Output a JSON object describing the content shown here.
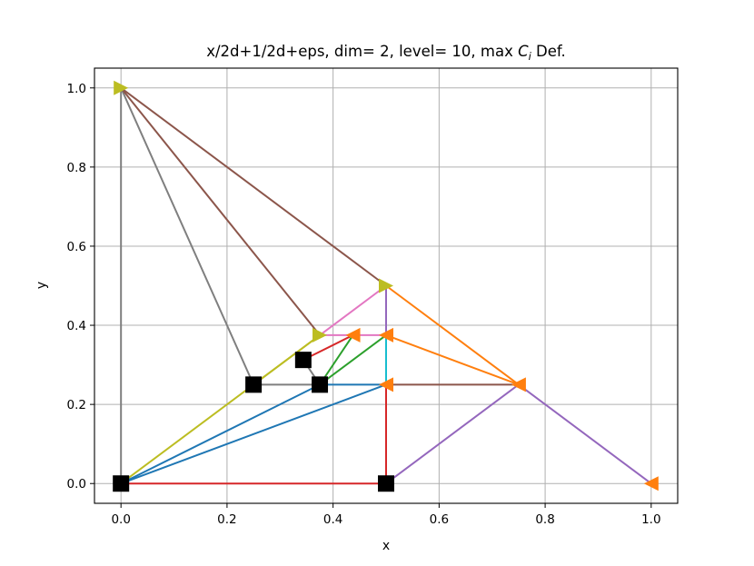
{
  "chart_data": {
    "type": "line",
    "title": "x/2d+1/2d+eps, dim= 2, level= 10, max ",
    "title_italic": "C",
    "title_sub": "i",
    "title_suffix": " Def.",
    "xlabel": "x",
    "ylabel": "y",
    "xlim": [
      -0.05,
      1.05
    ],
    "ylim": [
      -0.05,
      1.05
    ],
    "xticks": [
      0.0,
      0.2,
      0.4,
      0.6,
      0.8,
      1.0
    ],
    "yticks": [
      0.0,
      0.2,
      0.4,
      0.6,
      0.8,
      1.0
    ],
    "xtick_labels": [
      "0.0",
      "0.2",
      "0.4",
      "0.6",
      "0.8",
      "1.0"
    ],
    "ytick_labels": [
      "0.0",
      "0.2",
      "0.4",
      "0.6",
      "0.8",
      "1.0"
    ],
    "grid": true,
    "segments": [
      {
        "color": "#d62728",
        "x": [
          0,
          0.5
        ],
        "y": [
          0,
          0
        ]
      },
      {
        "color": "#d62728",
        "x": [
          0.5,
          0.5
        ],
        "y": [
          0,
          0.25
        ]
      },
      {
        "color": "#1f77b4",
        "x": [
          0,
          0.5
        ],
        "y": [
          0,
          0.25
        ]
      },
      {
        "color": "#1f77b4",
        "x": [
          0,
          0.375
        ],
        "y": [
          0,
          0.25
        ]
      },
      {
        "color": "#1f77b4",
        "x": [
          0.375,
          0.5
        ],
        "y": [
          0.25,
          0.25
        ]
      },
      {
        "color": "#bcbd22",
        "x": [
          0,
          0.375
        ],
        "y": [
          0,
          0.375
        ]
      },
      {
        "color": "#7f7f7f",
        "x": [
          0,
          0
        ],
        "y": [
          0,
          1
        ]
      },
      {
        "color": "#7f7f7f",
        "x": [
          0,
          0.25
        ],
        "y": [
          1,
          0.25
        ]
      },
      {
        "color": "#7f7f7f",
        "x": [
          0.25,
          0.375
        ],
        "y": [
          0.25,
          0.25
        ]
      },
      {
        "color": "#7f7f7f",
        "x": [
          0.3438,
          0.375
        ],
        "y": [
          0.3125,
          0.25
        ]
      },
      {
        "color": "#8c564b",
        "x": [
          0,
          0.5
        ],
        "y": [
          1,
          0.5
        ]
      },
      {
        "color": "#8c564b",
        "x": [
          0,
          0.375
        ],
        "y": [
          1,
          0.375
        ]
      },
      {
        "color": "#8c564b",
        "x": [
          0.5,
          0.75
        ],
        "y": [
          0.25,
          0.25
        ]
      },
      {
        "color": "#9467bd",
        "x": [
          0.5,
          0.5
        ],
        "y": [
          0.5,
          0.25
        ]
      },
      {
        "color": "#9467bd",
        "x": [
          0.5,
          0.75
        ],
        "y": [
          0,
          0.25
        ]
      },
      {
        "color": "#9467bd",
        "x": [
          0.75,
          1.0
        ],
        "y": [
          0.25,
          0
        ]
      },
      {
        "color": "#ff7f0e",
        "x": [
          0.5,
          0.75
        ],
        "y": [
          0.5,
          0.25
        ]
      },
      {
        "color": "#ff7f0e",
        "x": [
          0.5,
          0.75
        ],
        "y": [
          0.375,
          0.25
        ]
      },
      {
        "color": "#e377c2",
        "x": [
          0.375,
          0.5
        ],
        "y": [
          0.375,
          0.5
        ]
      },
      {
        "color": "#e377c2",
        "x": [
          0.375,
          0.5
        ],
        "y": [
          0.375,
          0.375
        ]
      },
      {
        "color": "#d62728",
        "x": [
          0.3438,
          0.4375
        ],
        "y": [
          0.3125,
          0.375
        ]
      },
      {
        "color": "#2ca02c",
        "x": [
          0.375,
          0.4375
        ],
        "y": [
          0.25,
          0.375
        ]
      },
      {
        "color": "#2ca02c",
        "x": [
          0.375,
          0.5
        ],
        "y": [
          0.25,
          0.375
        ]
      },
      {
        "color": "#17becf",
        "x": [
          0.5,
          0.5
        ],
        "y": [
          0.25,
          0.375
        ]
      },
      {
        "color": "#bcbd22",
        "x": [
          0.25,
          0.375
        ],
        "y": [
          0.25,
          0.375
        ]
      }
    ],
    "square_markers": {
      "color": "#000000",
      "points": [
        [
          0,
          0
        ],
        [
          0.5,
          0
        ],
        [
          0.25,
          0.25
        ],
        [
          0.375,
          0.25
        ],
        [
          0.3438,
          0.3125
        ]
      ]
    },
    "triangle_markers": [
      {
        "color": "#bcbd22",
        "dir": "right",
        "points": [
          [
            0,
            1
          ],
          [
            0.5,
            0.5
          ],
          [
            0.375,
            0.375
          ]
        ]
      },
      {
        "color": "#ff7f0e",
        "dir": "left",
        "points": [
          [
            0.5,
            0.25
          ],
          [
            0.5,
            0.375
          ],
          [
            0.4375,
            0.375
          ],
          [
            0.75,
            0.25
          ],
          [
            1.0,
            0
          ]
        ]
      }
    ]
  }
}
